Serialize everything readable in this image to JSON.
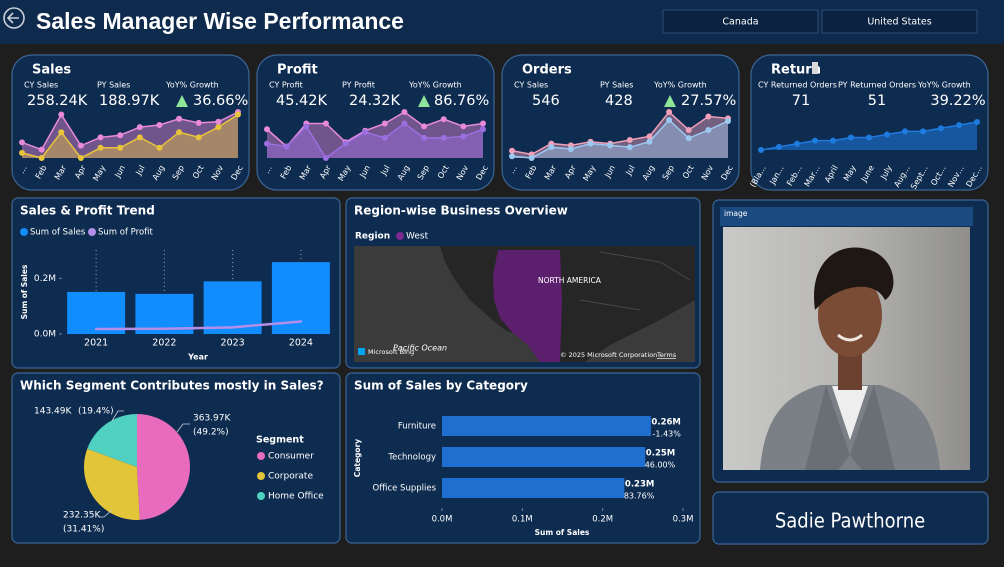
{
  "header": {
    "title": "Sales Manager Wise Performance",
    "filters": [
      "Canada",
      "United States"
    ]
  },
  "kpi_cards": [
    {
      "title": "Sales",
      "metrics": [
        {
          "label": "CY Sales",
          "value": "258.24K"
        },
        {
          "label": "PY Sales",
          "value": "188.97K"
        },
        {
          "label": "YoY% Growth",
          "value": "36.66%"
        }
      ],
      "sparkline": {
        "type": "area",
        "categories": [
          "…",
          "Feb",
          "Mar",
          "Apr",
          "May",
          "Jun",
          "Jul",
          "Aug",
          "Sep",
          "Oct",
          "Nov",
          "Dec"
        ],
        "series": [
          {
            "color": "#e98ad8",
            "values": [
              16.7,
              13.6,
              28.7,
              15.3,
              18.9,
              19.8,
              23.3,
              24.2,
              26.9,
              25.1,
              25.6,
              29.8
            ]
          },
          {
            "color": "#e8c43c",
            "values": [
              12.2,
              10.0,
              21.1,
              10.0,
              14.4,
              14.4,
              18.9,
              14.4,
              21.1,
              18.9,
              23.3,
              28.7
            ]
          }
        ]
      }
    },
    {
      "title": "Profit",
      "metrics": [
        {
          "label": "CY Profit",
          "value": "45.42K"
        },
        {
          "label": "PY Profit",
          "value": "24.32K"
        },
        {
          "label": "YoY% Growth",
          "value": "86.76%"
        }
      ],
      "sparkline": {
        "type": "area",
        "categories": [
          "…",
          "Feb",
          "Mar",
          "Apr",
          "May",
          "Jun",
          "Jul",
          "Aug",
          "Sep",
          "Oct",
          "Nov",
          "Dec"
        ],
        "series": [
          {
            "color": "#e98ad8",
            "values": [
              3.6,
              2.4,
              4.0,
              4.0,
              2.7,
              3.5,
              4.0,
              4.8,
              3.8,
              4.3,
              3.8,
              4.0
            ]
          },
          {
            "color": "#9b6fe0",
            "values": [
              2.6,
              2.4,
              3.8,
              1.6,
              2.6,
              3.4,
              3.0,
              4.0,
              3.0,
              3.0,
              3.1,
              3.6
            ]
          }
        ]
      }
    },
    {
      "title": "Orders",
      "metrics": [
        {
          "label": "CY Sales",
          "value": "546"
        },
        {
          "label": "PY Sales",
          "value": "428"
        },
        {
          "label": "YoY% Growth",
          "value": "27.57%"
        }
      ],
      "sparkline": {
        "type": "area",
        "categories": [
          "…",
          "Feb",
          "Mar",
          "Apr",
          "May",
          "Jun",
          "Jul",
          "Aug",
          "Sep",
          "Oct",
          "Nov",
          "Dec"
        ],
        "series": [
          {
            "color": "#f0a0b8",
            "values": [
              32,
              28,
              40,
              38,
              42,
              40,
              44,
              48,
              75,
              55,
              70,
              68
            ]
          },
          {
            "color": "#9cc8f0",
            "values": [
              26,
              24,
              36,
              34,
              40,
              38,
              36,
              42,
              66,
              46,
              55,
              65
            ]
          }
        ]
      }
    },
    {
      "title": "Return",
      "metrics": [
        {
          "label": "CY Returned Orders",
          "value": "71"
        },
        {
          "label": "PY Returned Orders",
          "value": "51"
        },
        {
          "label": "YoY% Growth",
          "value": "39.22%"
        }
      ],
      "sparkline": {
        "type": "area",
        "categories": [
          "(Bla…",
          "Jan…",
          "Feb…",
          "Mar…",
          "April",
          "May",
          "June",
          "July",
          "Aug…",
          "Sept…",
          "Oct…",
          "Nov…",
          "Dec…"
        ],
        "series": [
          {
            "color": "#1e7be0",
            "values": [
              1,
              2,
              3,
              4,
              4,
              5,
              5,
              6,
              7,
              7,
              8,
              9,
              10
            ]
          }
        ]
      }
    }
  ],
  "sales_profit_trend": {
    "type": "bar",
    "title": "Sales & Profit Trend",
    "categories": [
      "2021",
      "2022",
      "2023",
      "2024"
    ],
    "series": [
      {
        "name": "Sum of Sales",
        "color": "#118dff",
        "type": "bar",
        "values": [
          0.151,
          0.144,
          0.189,
          0.258
        ]
      },
      {
        "name": "Sum of Profit",
        "color": "#b48ee8",
        "type": "line",
        "values": [
          0.018,
          0.019,
          0.024,
          0.045
        ]
      }
    ],
    "ylim": [
      0,
      0.28
    ],
    "yticks": [
      {
        "value": 0,
        "label": "0.0M"
      },
      {
        "value": 0.2,
        "label": "0.2M"
      }
    ],
    "x_label": "Year",
    "y_label": "Sum of Sales"
  },
  "region_map": {
    "title": "Region-wise Business Overview",
    "legend_title": "Region",
    "legend_items": [
      "West"
    ],
    "labels": [
      "NORTH AMERICA",
      "Pacific Ocean"
    ],
    "attribution": [
      "Microsoft Bing",
      "© 2025 Microsoft Corporation",
      "Terms"
    ]
  },
  "segment_pie": {
    "type": "pie",
    "title": "Which Segment Contributes mostly in Sales?",
    "legend_title": "Segment",
    "categories": [
      "Consumer",
      "Corporate",
      "Home Office"
    ],
    "colors": [
      "#e86bbd",
      "#e3c53a",
      "#4fd0c0"
    ],
    "values": [
      363.97,
      232.35,
      143.49
    ],
    "value_labels": [
      "363.97K",
      "232.35K",
      "143.49K"
    ],
    "percent_labels": [
      "(49.2%)",
      "(31.41%)",
      "(19.4%)"
    ]
  },
  "category_bar": {
    "type": "bar",
    "orientation": "horizontal",
    "title": "Sum of Sales by Category",
    "categories": [
      "Furniture",
      "Technology",
      "Office Supplies"
    ],
    "values": [
      0.26,
      0.253,
      0.227
    ],
    "value_labels": [
      "0.26M",
      "0.25M",
      "0.23M"
    ],
    "growth_labels": [
      "-1.43%",
      "46.00%",
      "83.76%"
    ],
    "color": "#1f6fd1",
    "xlim": [
      0,
      0.3
    ],
    "xticks": [
      {
        "value": 0,
        "label": "0.0M"
      },
      {
        "value": 0.1,
        "label": "0.1M"
      },
      {
        "value": 0.2,
        "label": "0.2M"
      },
      {
        "value": 0.3,
        "label": "0.3M"
      }
    ],
    "x_label": "Sum of Sales",
    "y_label": "Category"
  },
  "profile": {
    "image_label": "image",
    "name": "Sadie Pawthorne"
  }
}
